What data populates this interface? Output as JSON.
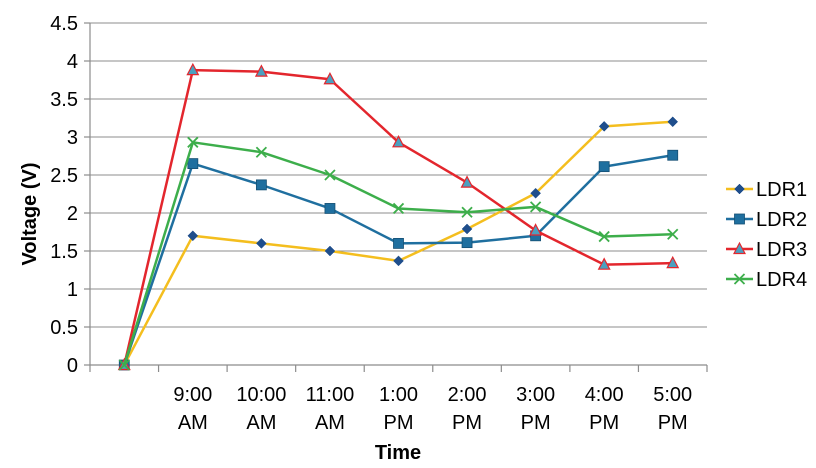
{
  "chart_data": {
    "type": "line",
    "title": "",
    "xlabel": "Time",
    "ylabel": "Voltage (V)",
    "ylim": [
      0,
      4.5
    ],
    "yticks": [
      "0",
      "0.5",
      "1",
      "1.5",
      "2",
      "2.5",
      "3",
      "3.5",
      "4",
      "4.5"
    ],
    "categories": [
      [
        "",
        ""
      ],
      [
        "9:00",
        "AM"
      ],
      [
        "10:00",
        "AM"
      ],
      [
        "11:00",
        "AM"
      ],
      [
        "1:00",
        "PM"
      ],
      [
        "2:00",
        "PM"
      ],
      [
        "3:00",
        "PM"
      ],
      [
        "4:00",
        "PM"
      ],
      [
        "5:00",
        "PM"
      ]
    ],
    "grid": "horizontal",
    "legend_position": "right",
    "series": [
      {
        "name": "LDR1",
        "color": "#F4BE1E",
        "marker": "diamond",
        "values": [
          0,
          1.7,
          1.6,
          1.5,
          1.37,
          1.79,
          2.26,
          3.14,
          3.2
        ]
      },
      {
        "name": "LDR2",
        "color": "#1F6F9F",
        "marker": "square",
        "values": [
          0,
          2.65,
          2.37,
          2.06,
          1.6,
          1.61,
          1.7,
          2.61,
          2.76
        ]
      },
      {
        "name": "LDR3",
        "color": "#E3262D",
        "marker": "triangle",
        "values": [
          0,
          3.88,
          3.86,
          3.76,
          2.93,
          2.4,
          1.77,
          1.32,
          1.34
        ]
      },
      {
        "name": "LDR4",
        "color": "#3DAE4B",
        "marker": "x",
        "values": [
          0,
          2.93,
          2.8,
          2.5,
          2.06,
          2.01,
          2.08,
          1.69,
          1.72
        ]
      }
    ]
  }
}
